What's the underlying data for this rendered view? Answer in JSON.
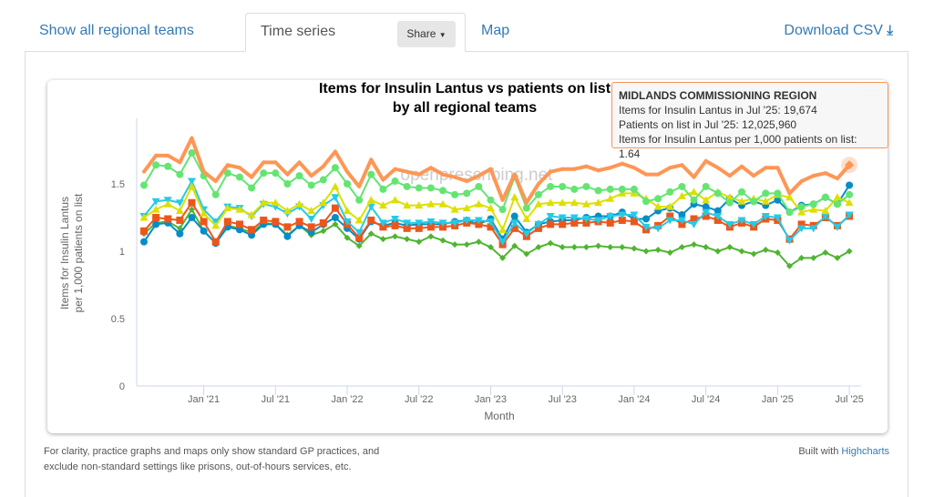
{
  "tabs": [
    {
      "label": "Show all regional teams"
    },
    {
      "label": "Time series"
    },
    {
      "label": "Map"
    }
  ],
  "share_label": "Share",
  "download_label": "Download CSV",
  "chart_data": {
    "type": "line",
    "title": "Items for Insulin Lantus vs patients on list",
    "subtitle": "by all regional teams",
    "xlabel": "Month",
    "ylabel": "Items for Insulin Lantus per 1,000 patients on list",
    "ylabel_lines": [
      "Items for Insulin Lantus",
      "per 1,000 patients on list"
    ],
    "ylim": [
      0,
      1.9
    ],
    "yticks": [
      "0",
      "0.5",
      "1",
      "1.5"
    ],
    "xtick_labels": [
      "Jan '21",
      "Jul '21",
      "Jan '22",
      "Jul '22",
      "Jan '23",
      "Jul '23",
      "Jan '24",
      "Jul '24",
      "Jan '25",
      "Jul '25"
    ],
    "grid": false,
    "watermark": "openprescribing.net",
    "x": [
      "Aug '20",
      "Sep '20",
      "Oct '20",
      "Nov '20",
      "Dec '20",
      "Jan '21",
      "Feb '21",
      "Mar '21",
      "Apr '21",
      "May '21",
      "Jun '21",
      "Jul '21",
      "Aug '21",
      "Sep '21",
      "Oct '21",
      "Nov '21",
      "Dec '21",
      "Jan '22",
      "Feb '22",
      "Mar '22",
      "Apr '22",
      "May '22",
      "Jun '22",
      "Jul '22",
      "Aug '22",
      "Sep '22",
      "Oct '22",
      "Nov '22",
      "Dec '22",
      "Jan '23",
      "Feb '23",
      "Mar '23",
      "Apr '23",
      "May '23",
      "Jun '23",
      "Jul '23",
      "Aug '23",
      "Sep '23",
      "Oct '23",
      "Nov '23",
      "Dec '23",
      "Jan '24",
      "Feb '24",
      "Mar '24",
      "Apr '24",
      "May '24",
      "Jun '24",
      "Jul '24",
      "Aug '24",
      "Sep '24",
      "Oct '24",
      "Nov '24",
      "Dec '24",
      "Jan '25",
      "Feb '25",
      "Mar '25",
      "Apr '25",
      "May '25",
      "Jun '25",
      "Jul '25"
    ],
    "series": [
      {
        "name": "MIDLANDS COMMISSIONING REGION",
        "color": "#ff9655",
        "marker": "diamond",
        "values": [
          1.59,
          1.71,
          1.71,
          1.66,
          1.84,
          1.59,
          1.52,
          1.64,
          1.62,
          1.55,
          1.66,
          1.66,
          1.57,
          1.66,
          1.56,
          1.63,
          1.74,
          1.59,
          1.48,
          1.68,
          1.53,
          1.61,
          1.59,
          1.57,
          1.62,
          1.57,
          1.55,
          1.52,
          1.56,
          1.61,
          1.38,
          1.57,
          1.36,
          1.5,
          1.59,
          1.61,
          1.61,
          1.63,
          1.6,
          1.62,
          1.65,
          1.62,
          1.57,
          1.57,
          1.62,
          1.64,
          1.55,
          1.67,
          1.62,
          1.56,
          1.63,
          1.56,
          1.62,
          1.62,
          1.43,
          1.52,
          1.56,
          1.58,
          1.54,
          1.64
        ]
      },
      {
        "color": "#64e572",
        "marker": "circle",
        "values": [
          1.49,
          1.64,
          1.63,
          1.57,
          1.73,
          1.56,
          1.42,
          1.58,
          1.55,
          1.47,
          1.58,
          1.58,
          1.5,
          1.56,
          1.49,
          1.53,
          1.62,
          1.5,
          1.38,
          1.57,
          1.46,
          1.52,
          1.48,
          1.47,
          1.47,
          1.45,
          1.42,
          1.43,
          1.48,
          1.38,
          1.31,
          1.55,
          1.32,
          1.42,
          1.48,
          1.48,
          1.46,
          1.48,
          1.45,
          1.46,
          1.46,
          1.46,
          1.37,
          1.39,
          1.44,
          1.48,
          1.38,
          1.48,
          1.43,
          1.36,
          1.44,
          1.37,
          1.43,
          1.43,
          1.29,
          1.33,
          1.35,
          1.4,
          1.35,
          1.42
        ]
      },
      {
        "color": "#dddf00",
        "marker": "triangle",
        "values": [
          1.25,
          1.31,
          1.35,
          1.3,
          1.48,
          1.28,
          1.19,
          1.32,
          1.31,
          1.27,
          1.36,
          1.36,
          1.3,
          1.35,
          1.3,
          1.36,
          1.48,
          1.3,
          1.23,
          1.38,
          1.34,
          1.38,
          1.34,
          1.34,
          1.35,
          1.35,
          1.31,
          1.32,
          1.35,
          1.32,
          1.16,
          1.4,
          1.24,
          1.35,
          1.36,
          1.36,
          1.36,
          1.35,
          1.36,
          1.39,
          1.43,
          1.43,
          1.39,
          1.33,
          1.33,
          1.41,
          1.44,
          1.38,
          1.44,
          1.4,
          1.37,
          1.39,
          1.37,
          1.42,
          1.4,
          1.29,
          1.31,
          1.3,
          1.4,
          1.36
        ]
      },
      {
        "color": "#24cbe5",
        "marker": "triangle-down",
        "values": [
          1.26,
          1.37,
          1.38,
          1.36,
          1.52,
          1.31,
          1.22,
          1.33,
          1.32,
          1.26,
          1.35,
          1.33,
          1.28,
          1.33,
          1.24,
          1.34,
          1.4,
          1.22,
          1.14,
          1.33,
          1.21,
          1.24,
          1.21,
          1.21,
          1.22,
          1.21,
          1.21,
          1.23,
          1.23,
          1.22,
          1.07,
          1.21,
          1.13,
          1.2,
          1.26,
          1.25,
          1.25,
          1.24,
          1.23,
          1.26,
          1.27,
          1.27,
          1.18,
          1.17,
          1.23,
          1.23,
          1.2,
          1.29,
          1.26,
          1.2,
          1.23,
          1.2,
          1.26,
          1.25,
          1.08,
          1.17,
          1.17,
          1.26,
          1.18,
          1.27
        ]
      },
      {
        "color": "#ed561b",
        "marker": "square",
        "values": [
          1.15,
          1.25,
          1.24,
          1.23,
          1.36,
          1.22,
          1.07,
          1.22,
          1.2,
          1.16,
          1.23,
          1.22,
          1.18,
          1.22,
          1.18,
          1.21,
          1.32,
          1.2,
          1.1,
          1.23,
          1.18,
          1.19,
          1.17,
          1.17,
          1.18,
          1.18,
          1.19,
          1.21,
          1.2,
          1.18,
          1.05,
          1.17,
          1.11,
          1.17,
          1.2,
          1.2,
          1.21,
          1.21,
          1.22,
          1.21,
          1.23,
          1.22,
          1.16,
          1.19,
          1.26,
          1.2,
          1.24,
          1.26,
          1.23,
          1.18,
          1.21,
          1.18,
          1.24,
          1.23,
          1.09,
          1.2,
          1.19,
          1.25,
          1.19,
          1.26
        ]
      },
      {
        "color": "#058dc7",
        "marker": "circle",
        "values": [
          1.07,
          1.2,
          1.21,
          1.13,
          1.25,
          1.15,
          1.06,
          1.18,
          1.16,
          1.12,
          1.2,
          1.2,
          1.11,
          1.19,
          1.14,
          1.2,
          1.25,
          1.17,
          1.09,
          1.22,
          1.19,
          1.21,
          1.19,
          1.2,
          1.2,
          1.2,
          1.22,
          1.23,
          1.2,
          1.24,
          1.09,
          1.26,
          1.14,
          1.2,
          1.22,
          1.23,
          1.23,
          1.25,
          1.26,
          1.26,
          1.29,
          1.24,
          1.24,
          1.3,
          1.32,
          1.27,
          1.35,
          1.33,
          1.3,
          1.39,
          1.34,
          1.37,
          1.34,
          1.38,
          1.29,
          1.34,
          1.35,
          1.4,
          1.35,
          1.49
        ]
      },
      {
        "color": "#50b432",
        "marker": "diamond",
        "values": [
          1.13,
          1.21,
          1.22,
          1.17,
          1.31,
          1.15,
          1.06,
          1.19,
          1.17,
          1.14,
          1.21,
          1.2,
          1.12,
          1.19,
          1.12,
          1.15,
          1.2,
          1.1,
          1.04,
          1.13,
          1.09,
          1.11,
          1.09,
          1.07,
          1.11,
          1.08,
          1.05,
          1.05,
          1.07,
          1.03,
          0.95,
          1.04,
          0.98,
          1.03,
          1.06,
          1.03,
          1.03,
          1.03,
          1.04,
          1.03,
          1.03,
          1.02,
          1.0,
          1.01,
          0.99,
          1.03,
          1.05,
          1.03,
          1.0,
          1.03,
          1.0,
          0.98,
          1.01,
          0.99,
          0.89,
          0.95,
          0.95,
          0.99,
          0.95,
          1.0
        ]
      }
    ]
  },
  "tooltip": {
    "title": "MIDLANDS COMMISSIONING REGION",
    "line1": "Items for Insulin Lantus in Jul '25: 19,674",
    "line2": "Patients on list in Jul '25: 12,025,960",
    "line3": "Items for Insulin Lantus per 1,000 patients on list: 1.64"
  },
  "footer": {
    "note_line1": "For clarity, practice graphs and maps only show standard GP practices, and",
    "note_line2": "exclude non-standard settings like prisons, out-of-hours services, etc.",
    "built_with": "Built with ",
    "highcharts": "Highcharts"
  }
}
